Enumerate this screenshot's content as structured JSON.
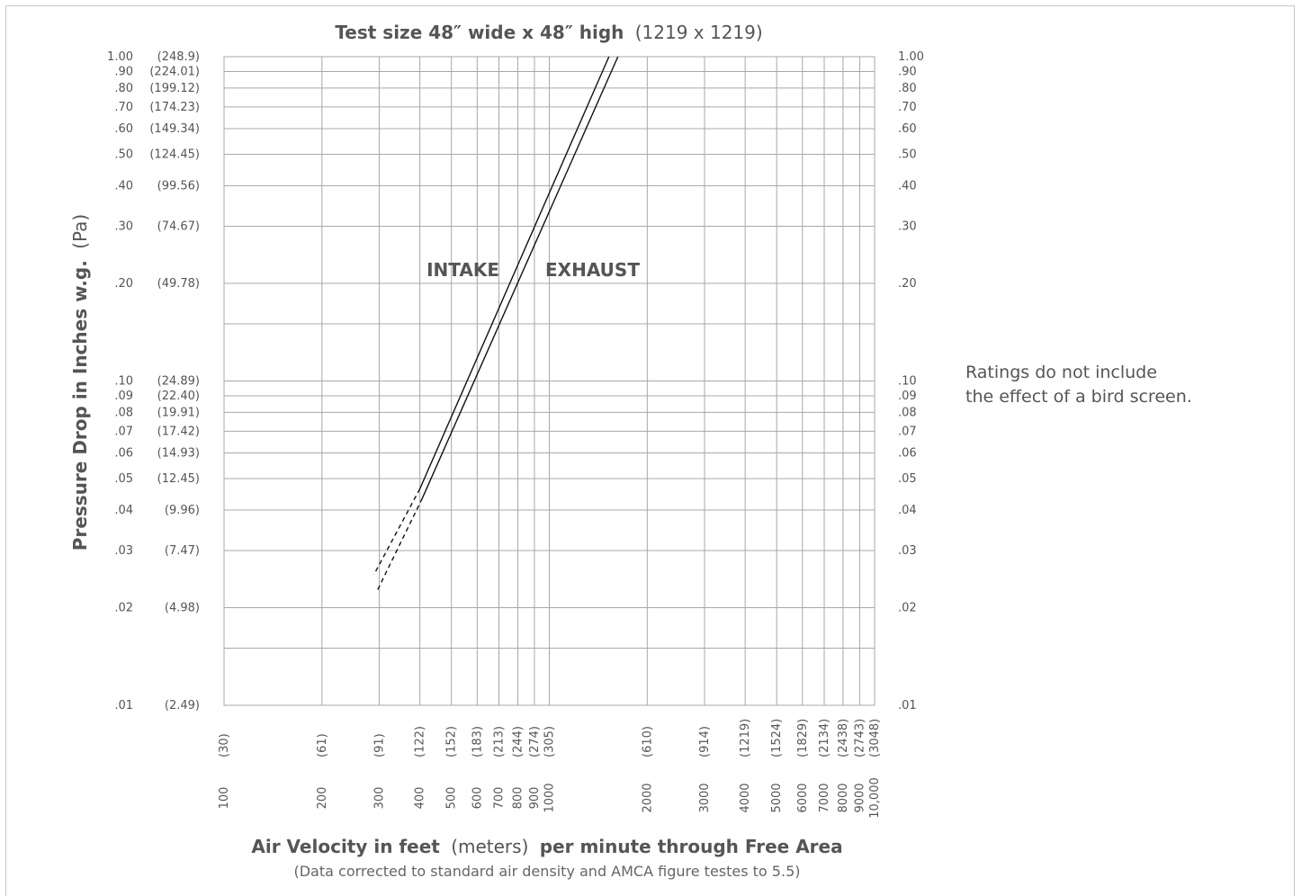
{
  "chart_data": {
    "type": "line",
    "title": {
      "main": "Test size 48″ wide x 48″ high",
      "metric": "(1219 x 1219)"
    },
    "ylabel": {
      "main": "Pressure Drop in Inches w.g.",
      "unit": "(Pa)"
    },
    "xlabel": {
      "part1": "Air Velocity in feet",
      "part2": "(meters)",
      "part3": "per minute through Free Area"
    },
    "subtitle": "(Data corrected to standard air density and AMCA figure testes to 5.5)",
    "note_lines": [
      "Ratings do not include",
      "the effect of a bird screen."
    ],
    "x_scale": "log",
    "y_scale": "log",
    "xlim": [
      100,
      10000
    ],
    "ylim": [
      0.01,
      1.0
    ],
    "grid": true,
    "x_ticks": [
      {
        "value": 100,
        "label": "100",
        "metric": "(30)"
      },
      {
        "value": 200,
        "label": "200",
        "metric": "(61)"
      },
      {
        "value": 300,
        "label": "300",
        "metric": "(91)"
      },
      {
        "value": 400,
        "label": "400",
        "metric": "(122)"
      },
      {
        "value": 500,
        "label": "500",
        "metric": "(152)"
      },
      {
        "value": 600,
        "label": "600",
        "metric": "(183)"
      },
      {
        "value": 700,
        "label": "700",
        "metric": "(213)"
      },
      {
        "value": 800,
        "label": "800",
        "metric": "(244)"
      },
      {
        "value": 900,
        "label": "900",
        "metric": "(274)"
      },
      {
        "value": 1000,
        "label": "1000",
        "metric": "(305)"
      },
      {
        "value": 2000,
        "label": "2000",
        "metric": "(610)"
      },
      {
        "value": 3000,
        "label": "3000",
        "metric": "(914)"
      },
      {
        "value": 4000,
        "label": "4000",
        "metric": "(1219)"
      },
      {
        "value": 5000,
        "label": "5000",
        "metric": "(1524)"
      },
      {
        "value": 6000,
        "label": "6000",
        "metric": "(1829)"
      },
      {
        "value": 7000,
        "label": "7000",
        "metric": "(2134)"
      },
      {
        "value": 8000,
        "label": "8000",
        "metric": "(2438)"
      },
      {
        "value": 9000,
        "label": "9000",
        "metric": "(2743)"
      },
      {
        "value": 10000,
        "label": "10,000",
        "metric": "(3048)"
      }
    ],
    "y_ticks": [
      {
        "value": 1.0,
        "left": "1.00",
        "metric": "(248.9)",
        "right": "1.00"
      },
      {
        "value": 0.9,
        "left": ".90",
        "metric": "(224.01)",
        "right": ".90"
      },
      {
        "value": 0.8,
        "left": ".80",
        "metric": "(199.12)",
        "right": ".80"
      },
      {
        "value": 0.7,
        "left": ".70",
        "metric": "(174.23)",
        "right": ".70"
      },
      {
        "value": 0.6,
        "left": ".60",
        "metric": "(149.34)",
        "right": ".60"
      },
      {
        "value": 0.5,
        "left": ".50",
        "metric": "(124.45)",
        "right": ".50"
      },
      {
        "value": 0.4,
        "left": ".40",
        "metric": "(99.56)",
        "right": ".40"
      },
      {
        "value": 0.3,
        "left": ".30",
        "metric": "(74.67)",
        "right": ".30"
      },
      {
        "value": 0.2,
        "left": ".20",
        "metric": "(49.78)",
        "right": ".20"
      },
      {
        "value": 0.1,
        "left": ".10",
        "metric": "(24.89)",
        "right": ".10"
      },
      {
        "value": 0.09,
        "left": ".09",
        "metric": "(22.40)",
        "right": ".09"
      },
      {
        "value": 0.08,
        "left": ".08",
        "metric": "(19.91)",
        "right": ".08"
      },
      {
        "value": 0.07,
        "left": ".07",
        "metric": "(17.42)",
        "right": ".07"
      },
      {
        "value": 0.06,
        "left": ".06",
        "metric": "(14.93)",
        "right": ".06"
      },
      {
        "value": 0.05,
        "left": ".05",
        "metric": "(12.45)",
        "right": ".05"
      },
      {
        "value": 0.04,
        "left": ".04",
        "metric": "(9.96)",
        "right": ".04"
      },
      {
        "value": 0.03,
        "left": ".03",
        "metric": "(7.47)",
        "right": ".03"
      },
      {
        "value": 0.02,
        "left": ".02",
        "metric": "(4.98)",
        "right": ".02"
      },
      {
        "value": 0.01,
        "left": ".01",
        "metric": "(2.49)",
        "right": ".01"
      }
    ],
    "extra_gridlines_y": [
      0.15,
      0.015
    ],
    "series": [
      {
        "name": "INTAKE",
        "solid": [
          [
            400,
            0.0465
          ],
          [
            1525,
            1.0
          ]
        ],
        "dashed": [
          [
            400,
            0.0465
          ],
          [
            289,
            0.0253
          ]
        ]
      },
      {
        "name": "EXHAUST",
        "solid": [
          [
            407,
            0.0435
          ],
          [
            1625,
            1.0
          ]
        ],
        "dashed": [
          [
            407,
            0.0435
          ],
          [
            296,
            0.0226
          ]
        ]
      }
    ],
    "label_positions_note": "Series labels placed left (INTAKE) and right (EXHAUST) of the lines near 0.20 in.w.g."
  }
}
